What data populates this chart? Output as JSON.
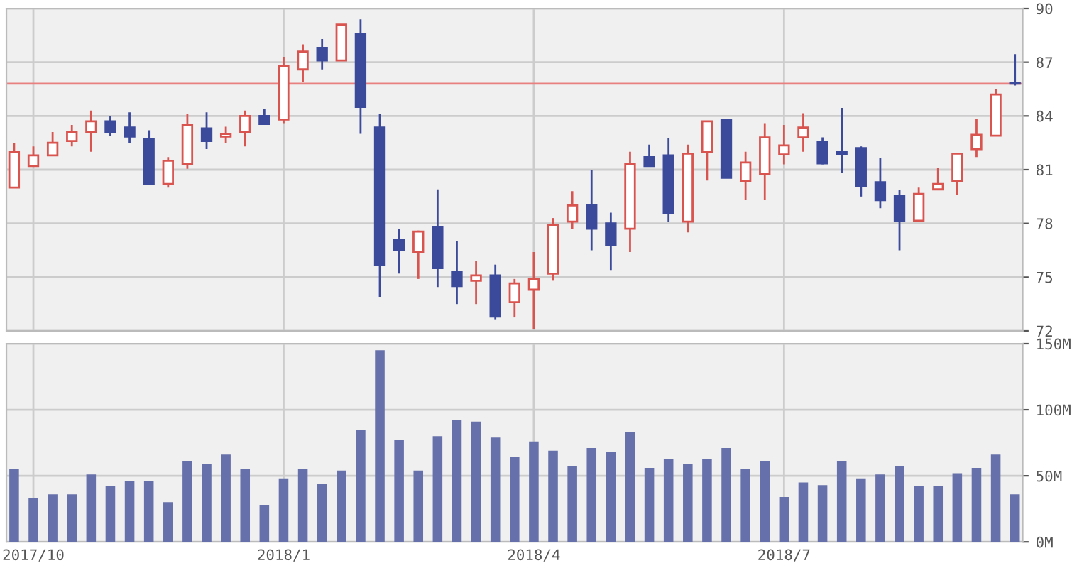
{
  "chart_data": [
    {
      "type": "candlestick",
      "categories": [
        null,
        "2017/10",
        null,
        null,
        null,
        null,
        null,
        null,
        null,
        null,
        null,
        null,
        null,
        null,
        "2018/1",
        null,
        null,
        null,
        null,
        null,
        null,
        null,
        null,
        null,
        null,
        null,
        null,
        "2018/4",
        null,
        null,
        null,
        null,
        null,
        null,
        null,
        null,
        null,
        null,
        null,
        null,
        "2018/7",
        null,
        null,
        null,
        null,
        null,
        null,
        null,
        null,
        null,
        null,
        null,
        null
      ],
      "ohlc": [
        [
          80.0,
          82.5,
          80.0,
          82.0
        ],
        [
          81.2,
          82.3,
          81.2,
          81.8
        ],
        [
          81.8,
          83.1,
          81.8,
          82.5
        ],
        [
          82.6,
          83.5,
          82.3,
          83.1
        ],
        [
          83.1,
          84.3,
          82.0,
          83.7
        ],
        [
          83.7,
          84.0,
          82.9,
          83.1
        ],
        [
          83.35,
          84.2,
          82.5,
          82.85
        ],
        [
          82.7,
          83.2,
          80.2,
          80.2
        ],
        [
          80.2,
          81.7,
          80.0,
          81.5
        ],
        [
          81.3,
          84.1,
          81.05,
          83.5
        ],
        [
          83.3,
          84.2,
          82.15,
          82.6
        ],
        [
          82.85,
          83.4,
          82.5,
          83.0
        ],
        [
          83.1,
          84.3,
          82.3,
          84.0
        ],
        [
          84.0,
          84.4,
          83.55,
          83.55
        ],
        [
          83.8,
          87.3,
          83.6,
          86.8
        ],
        [
          86.6,
          88.0,
          85.9,
          87.6
        ],
        [
          87.8,
          88.3,
          86.6,
          87.1
        ],
        [
          87.1,
          89.1,
          87.1,
          89.1
        ],
        [
          88.6,
          89.4,
          83.0,
          84.5
        ],
        [
          83.35,
          84.1,
          73.9,
          75.7
        ],
        [
          77.1,
          77.7,
          75.2,
          76.5
        ],
        [
          76.4,
          77.6,
          74.9,
          77.55
        ],
        [
          77.8,
          79.9,
          74.45,
          75.5
        ],
        [
          75.3,
          77.0,
          73.5,
          74.5
        ],
        [
          74.8,
          75.9,
          73.5,
          75.1
        ],
        [
          75.1,
          75.7,
          72.65,
          72.8
        ],
        [
          73.6,
          74.9,
          72.75,
          74.65
        ],
        [
          74.3,
          76.4,
          72.1,
          74.9
        ],
        [
          75.2,
          78.3,
          74.8,
          77.9
        ],
        [
          78.1,
          79.8,
          77.7,
          79.0
        ],
        [
          79.0,
          81.0,
          76.5,
          77.7
        ],
        [
          78.0,
          78.6,
          75.4,
          76.8
        ],
        [
          77.7,
          82.0,
          76.4,
          81.3
        ],
        [
          81.7,
          82.4,
          81.2,
          81.2
        ],
        [
          81.8,
          82.75,
          78.1,
          78.6
        ],
        [
          78.1,
          82.4,
          77.5,
          81.9
        ],
        [
          82.0,
          83.7,
          80.4,
          83.7
        ],
        [
          83.8,
          83.85,
          80.55,
          80.55
        ],
        [
          80.35,
          82.0,
          79.3,
          81.4
        ],
        [
          80.75,
          83.6,
          79.3,
          82.8
        ],
        [
          81.85,
          83.5,
          81.3,
          82.35
        ],
        [
          82.8,
          84.15,
          82.0,
          83.35
        ],
        [
          82.55,
          82.8,
          81.3,
          81.35
        ],
        [
          82.0,
          84.45,
          80.8,
          81.85
        ],
        [
          82.2,
          82.3,
          79.5,
          80.1
        ],
        [
          80.3,
          81.65,
          78.85,
          79.3
        ],
        [
          79.55,
          79.85,
          76.5,
          78.15
        ],
        [
          78.15,
          80.0,
          78.15,
          79.65
        ],
        [
          79.9,
          81.1,
          79.9,
          80.2
        ],
        [
          80.35,
          81.9,
          79.6,
          81.9
        ],
        [
          82.15,
          83.85,
          81.7,
          82.95
        ],
        [
          82.9,
          85.5,
          82.9,
          85.2
        ],
        [
          85.85,
          87.45,
          85.7,
          85.8
        ]
      ],
      "colors": [
        "#d9534f",
        "#d9534f",
        "#d9534f",
        "#d9534f",
        "#d9534f",
        "#3b4a9a",
        "#3b4a9a",
        "#3b4a9a",
        "#d9534f",
        "#d9534f",
        "#3b4a9a",
        "#d9534f",
        "#d9534f",
        "#3b4a9a",
        "#d9534f",
        "#d9534f",
        "#3b4a9a",
        "#d9534f",
        "#3b4a9a",
        "#3b4a9a",
        "#3b4a9a",
        "#d9534f",
        "#3b4a9a",
        "#3b4a9a",
        "#d9534f",
        "#3b4a9a",
        "#d9534f",
        "#d9534f",
        "#d9534f",
        "#d9534f",
        "#3b4a9a",
        "#3b4a9a",
        "#d9534f",
        "#3b4a9a",
        "#3b4a9a",
        "#d9534f",
        "#d9534f",
        "#3b4a9a",
        "#d9534f",
        "#d9534f",
        "#d9534f",
        "#d9534f",
        "#3b4a9a",
        "#3b4a9a",
        "#3b4a9a",
        "#3b4a9a",
        "#3b4a9a",
        "#d9534f",
        "#d9534f",
        "#d9534f",
        "#d9534f",
        "#d9534f",
        "#3b4a9a"
      ],
      "ylim": [
        72,
        90
      ],
      "yticks": [
        72,
        75,
        78,
        81,
        84,
        87,
        90
      ],
      "ref_lines": [
        {
          "axis": "y",
          "value": 85.8,
          "color": "#e88080"
        }
      ],
      "grid": true,
      "tick_labels": "y"
    },
    {
      "type": "bar",
      "categories": [
        null,
        "2017/10",
        null,
        null,
        null,
        null,
        null,
        null,
        null,
        null,
        null,
        null,
        null,
        null,
        "2018/1",
        null,
        null,
        null,
        null,
        null,
        null,
        null,
        null,
        null,
        null,
        null,
        null,
        "2018/4",
        null,
        null,
        null,
        null,
        null,
        null,
        null,
        null,
        null,
        null,
        null,
        null,
        "2018/7",
        null,
        null,
        null,
        null,
        null,
        null,
        null,
        null,
        null,
        null,
        null,
        null
      ],
      "values": [
        55,
        33,
        36,
        36,
        51,
        42,
        46,
        46,
        30,
        61,
        59,
        66,
        55,
        28,
        48,
        55,
        44,
        54,
        85,
        145,
        77,
        54,
        80,
        92,
        91,
        79,
        64,
        76,
        69,
        57,
        71,
        68,
        83,
        56,
        63,
        59,
        63,
        71,
        55,
        61,
        34,
        45,
        43,
        61,
        48,
        51,
        57,
        42,
        42,
        52,
        56,
        66,
        36
      ],
      "color": "#6670aa",
      "ylim": [
        0,
        150
      ],
      "yticks": [
        {
          "value": 0,
          "label": "0M"
        },
        {
          "value": 50,
          "label": "50M"
        },
        {
          "value": 100,
          "label": "100M"
        },
        {
          "value": 150,
          "label": "150M"
        }
      ],
      "grid": true
    }
  ]
}
